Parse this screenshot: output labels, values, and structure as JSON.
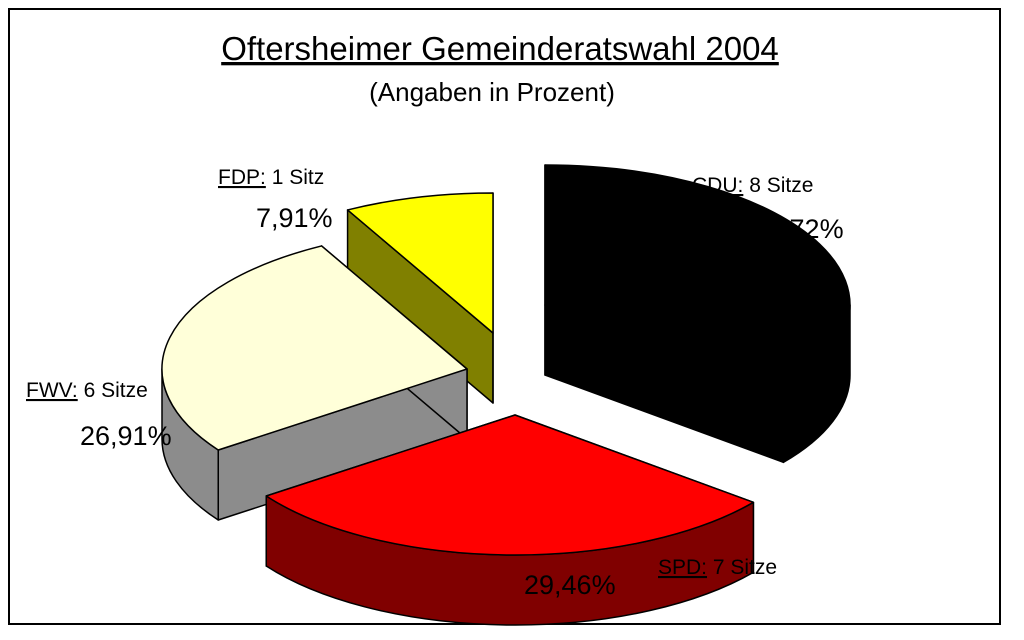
{
  "chart_data": {
    "type": "pie",
    "title": "Oftersheimer Gemeinderatswahl 2004",
    "subtitle": "(Angaben in Prozent)",
    "slices": [
      {
        "party": "CDU:",
        "seats_label": "8 Sitze",
        "percent_label": "35,72%",
        "value": 35.72,
        "color": "#000000",
        "side_color": "#000000"
      },
      {
        "party": "SPD:",
        "seats_label": "7 Sitze",
        "percent_label": "29,46%",
        "value": 29.46,
        "color": "#ff0000",
        "side_color": "#800000"
      },
      {
        "party": "FWV:",
        "seats_label": "6 Sitze",
        "percent_label": "26,91%",
        "value": 26.91,
        "color": "#ffffd9",
        "side_color": "#8c8c8c"
      },
      {
        "party": "FDP:",
        "seats_label": "1 Sitz",
        "percent_label": "7,91%",
        "value": 7.91,
        "color": "#ffff00",
        "side_color": "#808000"
      }
    ]
  }
}
